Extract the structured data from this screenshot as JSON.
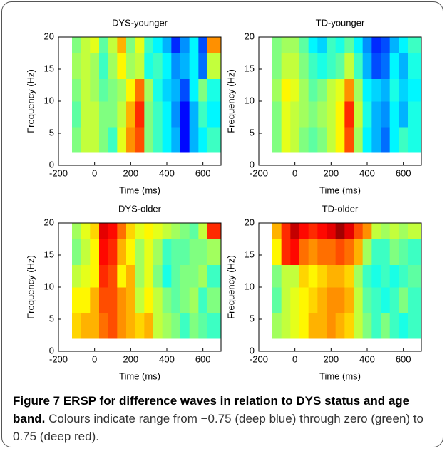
{
  "chart_data": [
    {
      "type": "heatmap",
      "title": "DYS-younger",
      "xlabel": "Time (ms)",
      "ylabel": "Frequency (Hz)",
      "xlim": [
        -200,
        700
      ],
      "ylim": [
        0,
        20
      ],
      "xticks": [
        -200,
        0,
        200,
        400,
        600
      ],
      "yticks": [
        0,
        5,
        10,
        15,
        20
      ],
      "zlim": [
        -0.75,
        0.75
      ],
      "x_edges": [
        -125,
        -75,
        -25,
        25,
        75,
        125,
        175,
        225,
        275,
        325,
        375,
        425,
        475,
        525,
        575,
        625,
        700
      ],
      "y_edges": [
        2,
        6,
        10,
        13.5,
        17.5,
        20
      ],
      "values": [
        [
          0,
          0.1,
          0.1,
          0,
          -0.1,
          0.15,
          0.35,
          0.45,
          0,
          -0.1,
          -0.2,
          -0.3,
          -0.55,
          -0.3,
          -0.2,
          -0.1
        ],
        [
          -0.05,
          0.1,
          0.1,
          0,
          0,
          0.1,
          0.3,
          0.5,
          0,
          -0.1,
          -0.2,
          -0.35,
          -0.55,
          -0.3,
          -0.1,
          -0.2
        ],
        [
          0,
          0.1,
          0.05,
          -0.05,
          0,
          0.05,
          0.2,
          0.4,
          0.05,
          -0.15,
          -0.25,
          -0.3,
          -0.45,
          -0.2,
          0,
          -0.15
        ],
        [
          0.05,
          0.1,
          0.05,
          -0.1,
          0.05,
          0.2,
          0.05,
          0.1,
          -0.15,
          -0.1,
          -0.2,
          -0.35,
          -0.3,
          -0.2,
          -0.4,
          0.1
        ],
        [
          0,
          0.1,
          0.15,
          -0.05,
          0.1,
          0.3,
          0,
          0.15,
          -0.1,
          -0.2,
          -0.3,
          -0.5,
          -0.35,
          -0.2,
          -0.45,
          0.35
        ]
      ]
    },
    {
      "type": "heatmap",
      "title": "TD-younger",
      "xlabel": "Time (ms)",
      "ylabel": "Frequency (Hz)",
      "xlim": [
        -200,
        700
      ],
      "ylim": [
        0,
        20
      ],
      "xticks": [
        -200,
        0,
        200,
        400,
        600
      ],
      "yticks": [
        0,
        5,
        10,
        15,
        20
      ],
      "zlim": [
        -0.75,
        0.75
      ],
      "x_edges": [
        -125,
        -75,
        -25,
        25,
        75,
        125,
        175,
        225,
        275,
        325,
        375,
        425,
        475,
        525,
        575,
        625,
        700
      ],
      "y_edges": [
        2,
        6,
        10,
        13.5,
        17.5,
        20
      ],
      "values": [
        [
          0,
          0.15,
          0.1,
          0,
          -0.05,
          0,
          0.1,
          0.2,
          0.45,
          0.05,
          -0.2,
          -0.3,
          -0.4,
          -0.2,
          -0.1,
          -0.15
        ],
        [
          0,
          0.15,
          0.1,
          0.05,
          0,
          0.05,
          0.1,
          0.2,
          0.5,
          0.1,
          -0.15,
          -0.3,
          -0.35,
          -0.2,
          -0.3,
          -0.15
        ],
        [
          0.05,
          0.2,
          0.15,
          0.05,
          -0.05,
          0,
          0.1,
          0.15,
          0.35,
          0.05,
          -0.2,
          -0.25,
          -0.3,
          -0.15,
          -0.25,
          -0.2
        ],
        [
          0,
          0.1,
          0.1,
          0,
          -0.1,
          -0.15,
          -0.1,
          -0.05,
          0.1,
          -0.1,
          -0.3,
          -0.45,
          -0.4,
          -0.2,
          -0.3,
          -0.15
        ],
        [
          0,
          0.05,
          0.05,
          -0.05,
          -0.2,
          -0.25,
          -0.1,
          -0.15,
          -0.05,
          -0.2,
          -0.35,
          -0.5,
          -0.45,
          -0.3,
          -0.2,
          -0.1
        ]
      ]
    },
    {
      "type": "heatmap",
      "title": "DYS-older",
      "xlabel": "Time (ms)",
      "ylabel": "Frequency (Hz)",
      "xlim": [
        -200,
        700
      ],
      "ylim": [
        0,
        20
      ],
      "xticks": [
        -200,
        0,
        200,
        400,
        600
      ],
      "yticks": [
        0,
        5,
        10,
        15,
        20
      ],
      "zlim": [
        -0.75,
        0.75
      ],
      "x_edges": [
        -125,
        -75,
        -25,
        25,
        75,
        125,
        175,
        225,
        275,
        325,
        375,
        425,
        475,
        525,
        575,
        625,
        700
      ],
      "y_edges": [
        2,
        6,
        10,
        13.5,
        17.5,
        20
      ],
      "values": [
        [
          0.25,
          0.3,
          0.3,
          0.4,
          0.45,
          0.35,
          0.3,
          0.25,
          0.3,
          0.1,
          0.05,
          0,
          -0.1,
          0,
          -0.05,
          -0.1
        ],
        [
          0.2,
          0.2,
          0.3,
          0.45,
          0.45,
          0.35,
          0.3,
          0.1,
          0.2,
          0.1,
          0,
          -0.05,
          0,
          0.05,
          -0.1,
          0
        ],
        [
          0.1,
          0.15,
          0.2,
          0.5,
          0.45,
          0.2,
          0.3,
          0.05,
          0.15,
          0,
          -0.15,
          -0.05,
          0,
          0,
          0.05,
          -0.1
        ],
        [
          0,
          0.1,
          0.2,
          0.55,
          0.5,
          0.3,
          0.2,
          0.05,
          0.15,
          0.05,
          -0.1,
          -0.05,
          -0.05,
          0,
          0,
          0.05
        ],
        [
          0.05,
          0.15,
          0.25,
          0.6,
          0.55,
          0.4,
          0.25,
          0.15,
          0.2,
          0.15,
          0.1,
          0.05,
          0,
          -0.05,
          0.1,
          0.5
        ]
      ]
    },
    {
      "type": "heatmap",
      "title": "TD-older",
      "xlabel": "Time (ms)",
      "ylabel": "Frequency (Hz)",
      "xlim": [
        -200,
        700
      ],
      "ylim": [
        0,
        20
      ],
      "xticks": [
        -200,
        0,
        200,
        400,
        600
      ],
      "yticks": [
        0,
        5,
        10,
        15,
        20
      ],
      "zlim": [
        -0.75,
        0.75
      ],
      "x_edges": [
        -125,
        -75,
        -25,
        25,
        75,
        125,
        175,
        225,
        275,
        325,
        375,
        425,
        475,
        525,
        575,
        625,
        700
      ],
      "y_edges": [
        2,
        6,
        10,
        13.5,
        17.5,
        20
      ],
      "values": [
        [
          0.05,
          0.1,
          0.15,
          0.2,
          0.3,
          0.3,
          0.35,
          0.3,
          0.25,
          0.1,
          0,
          -0.1,
          0,
          -0.1,
          -0.15,
          -0.1
        ],
        [
          -0.05,
          0.1,
          0.15,
          0.2,
          0.25,
          0.3,
          0.35,
          0.35,
          0.3,
          0.1,
          -0.05,
          -0.1,
          -0.15,
          -0.1,
          0,
          -0.1
        ],
        [
          0,
          0.1,
          0.1,
          0.25,
          0.2,
          0.25,
          0.3,
          0.3,
          0.25,
          0.05,
          -0.1,
          -0.15,
          -0.1,
          -0.15,
          -0.1,
          -0.05
        ],
        [
          0.2,
          0.5,
          0.55,
          0.4,
          0.35,
          0.4,
          0.4,
          0.45,
          0.4,
          0.3,
          0.05,
          -0.1,
          -0.1,
          0,
          -0.05,
          -0.1
        ],
        [
          0.3,
          0.5,
          0.65,
          0.55,
          0.5,
          0.55,
          0.6,
          0.7,
          0.6,
          0.45,
          0.35,
          0.1,
          0.05,
          0.1,
          0.05,
          0.1
        ]
      ]
    }
  ],
  "caption": {
    "label": "Figure 7 ERSP for difference waves in relation to DYS status and age band.",
    "text": "Colours indicate range from −0.75 (deep blue) through zero (green) to 0.75 (deep red)."
  }
}
